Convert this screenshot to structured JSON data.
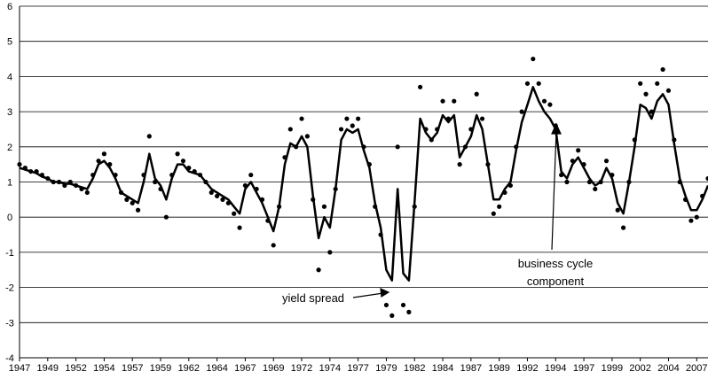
{
  "chart_data": {
    "type": "line",
    "x": [
      1947,
      1947.5,
      1948,
      1948.5,
      1949,
      1949.5,
      1950,
      1950.5,
      1951,
      1951.5,
      1952,
      1952.5,
      1953,
      1953.5,
      1954,
      1954.5,
      1955,
      1955.5,
      1956,
      1956.5,
      1957,
      1957.5,
      1958,
      1958.5,
      1959,
      1959.5,
      1960,
      1960.5,
      1961,
      1961.5,
      1962,
      1962.5,
      1963,
      1963.5,
      1964,
      1964.5,
      1965,
      1965.5,
      1966,
      1966.5,
      1967,
      1967.5,
      1968,
      1968.5,
      1969,
      1969.5,
      1970,
      1970.5,
      1971,
      1971.5,
      1972,
      1972.5,
      1973,
      1973.5,
      1974,
      1974.5,
      1975,
      1975.5,
      1976,
      1976.5,
      1977,
      1977.5,
      1978,
      1978.5,
      1979,
      1979.5,
      1980,
      1980.5,
      1981,
      1981.5,
      1982,
      1982.5,
      1983,
      1983.5,
      1984,
      1984.5,
      1985,
      1985.5,
      1986,
      1986.5,
      1987,
      1987.5,
      1988,
      1988.5,
      1989,
      1989.5,
      1990,
      1990.5,
      1991,
      1991.5,
      1992,
      1992.5,
      1993,
      1993.5,
      1994,
      1994.5,
      1995,
      1995.5,
      1996,
      1996.5,
      1997,
      1997.5,
      1998,
      1998.5,
      1999,
      1999.5,
      2000,
      2000.5,
      2001,
      2001.5,
      2002,
      2002.5,
      2003,
      2003.5,
      2004,
      2004.5,
      2005,
      2005.5,
      2006,
      2006.5,
      2007,
      2007.5,
      2008
    ],
    "series": [
      {
        "name": "yield spread",
        "style": "dots",
        "color": "#000000",
        "values": [
          1.5,
          1.4,
          1.3,
          1.3,
          1.2,
          1.1,
          1.0,
          1.0,
          0.9,
          1.0,
          0.9,
          0.8,
          0.7,
          1.2,
          1.6,
          1.8,
          1.5,
          1.2,
          0.7,
          0.5,
          0.4,
          0.2,
          1.2,
          2.3,
          1.0,
          0.8,
          0.0,
          1.2,
          1.8,
          1.6,
          1.4,
          1.3,
          1.2,
          1.0,
          0.7,
          0.6,
          0.5,
          0.4,
          0.1,
          -0.3,
          0.9,
          1.2,
          0.8,
          0.5,
          -0.1,
          -0.8,
          0.3,
          1.7,
          2.5,
          2.0,
          2.8,
          2.3,
          0.5,
          -1.5,
          0.3,
          -1.0,
          0.8,
          2.5,
          2.8,
          2.6,
          2.8,
          2.0,
          1.5,
          0.3,
          -0.5,
          -2.5,
          -2.8,
          2.0,
          -2.5,
          -2.7,
          0.3,
          3.7,
          2.5,
          2.2,
          2.5,
          3.3,
          2.8,
          3.3,
          1.5,
          2.0,
          2.5,
          3.5,
          2.8,
          1.5,
          0.1,
          0.3,
          0.7,
          0.9,
          2.0,
          3.0,
          3.8,
          4.5,
          3.8,
          3.3,
          3.2,
          2.6,
          1.2,
          1.0,
          1.6,
          1.9,
          1.5,
          1.0,
          0.8,
          1.0,
          1.6,
          1.2,
          0.2,
          -0.3,
          1.0,
          2.2,
          3.8,
          3.5,
          3.0,
          3.8,
          4.2,
          3.6,
          2.2,
          1.0,
          0.5,
          -0.1,
          0.0,
          0.6,
          1.1
        ]
      },
      {
        "name": "business cycle component",
        "style": "line",
        "color": "#000000",
        "values": [
          1.4,
          1.35,
          1.3,
          1.25,
          1.15,
          1.1,
          1.0,
          1.0,
          0.95,
          0.95,
          0.9,
          0.85,
          0.8,
          1.1,
          1.5,
          1.6,
          1.4,
          1.1,
          0.7,
          0.6,
          0.5,
          0.4,
          1.0,
          1.8,
          1.1,
          0.9,
          0.5,
          1.1,
          1.5,
          1.5,
          1.3,
          1.25,
          1.2,
          1.0,
          0.8,
          0.7,
          0.6,
          0.5,
          0.3,
          0.1,
          0.8,
          1.0,
          0.7,
          0.4,
          0.0,
          -0.4,
          0.3,
          1.5,
          2.1,
          2.0,
          2.3,
          2.0,
          0.6,
          -0.6,
          0.0,
          -0.3,
          0.8,
          2.2,
          2.5,
          2.4,
          2.5,
          1.9,
          1.4,
          0.4,
          -0.3,
          -1.5,
          -1.8,
          0.8,
          -1.6,
          -1.8,
          0.4,
          2.8,
          2.4,
          2.2,
          2.4,
          2.9,
          2.7,
          2.9,
          1.7,
          2.0,
          2.3,
          2.9,
          2.5,
          1.5,
          0.5,
          0.5,
          0.8,
          1.0,
          1.9,
          2.7,
          3.2,
          3.7,
          3.3,
          3.0,
          2.8,
          2.5,
          1.3,
          1.1,
          1.5,
          1.7,
          1.4,
          1.1,
          0.9,
          1.0,
          1.4,
          1.1,
          0.4,
          0.1,
          1.0,
          2.0,
          3.2,
          3.1,
          2.8,
          3.3,
          3.5,
          3.2,
          2.1,
          1.1,
          0.6,
          0.2,
          0.2,
          0.5,
          0.9
        ]
      }
    ],
    "xlim": [
      1947,
      2008
    ],
    "xticks": [
      1947,
      {
        "value": 1949.5,
        "label": "1949"
      },
      1952,
      {
        "value": 1954.5,
        "label": "1954"
      },
      1957,
      {
        "value": 1959.5,
        "label": "1959"
      },
      1962,
      {
        "value": 1964.5,
        "label": "1964"
      },
      1967,
      {
        "value": 1969.5,
        "label": "1969"
      },
      1972,
      {
        "value": 1974.5,
        "label": "1974"
      },
      1977,
      {
        "value": 1979.5,
        "label": "1979"
      },
      1982,
      {
        "value": 1984.5,
        "label": "1984"
      },
      1987,
      {
        "value": 1989.5,
        "label": "1989"
      },
      1992,
      {
        "value": 1994.5,
        "label": "1994"
      },
      1997,
      {
        "value": 1999.5,
        "label": "1999"
      },
      2002,
      {
        "value": 2004.5,
        "label": "2004"
      },
      2007
    ],
    "ylim": [
      -4,
      6
    ],
    "yticks": [
      -4,
      -3,
      -2,
      -1,
      0,
      1,
      2,
      3,
      4,
      5,
      6
    ],
    "grid": true,
    "annotations": [
      {
        "text": "yield spread"
      },
      {
        "text": [
          "business cycle",
          "component"
        ]
      }
    ]
  }
}
